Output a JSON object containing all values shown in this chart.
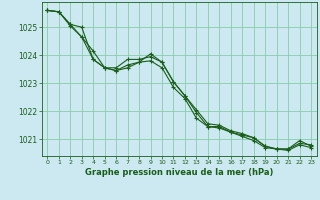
{
  "background_color": "#cce8f0",
  "grid_color": "#88ccaa",
  "line_color": "#1a5e1a",
  "xlabel": "Graphe pression niveau de la mer (hPa)",
  "xlim": [
    -0.5,
    23.5
  ],
  "ylim": [
    1020.4,
    1025.9
  ],
  "yticks": [
    1021,
    1022,
    1023,
    1024,
    1025
  ],
  "xticks": [
    0,
    1,
    2,
    3,
    4,
    5,
    6,
    7,
    8,
    9,
    10,
    11,
    12,
    13,
    14,
    15,
    16,
    17,
    18,
    19,
    20,
    21,
    22,
    23
  ],
  "series": [
    [
      1025.6,
      1025.55,
      1025.1,
      1025.0,
      1023.85,
      1023.55,
      1023.55,
      1023.85,
      1023.85,
      1023.95,
      1023.75,
      1023.05,
      1022.55,
      1021.95,
      1021.45,
      1021.45,
      1021.25,
      1021.15,
      1021.05,
      1020.75,
      1020.65,
      1020.65,
      1020.85,
      1020.8
    ],
    [
      1025.6,
      1025.55,
      1025.05,
      1024.65,
      1024.15,
      1023.55,
      1023.45,
      1023.65,
      1023.75,
      1024.05,
      1023.75,
      1023.05,
      1022.55,
      1022.05,
      1021.55,
      1021.5,
      1021.3,
      1021.2,
      1021.05,
      1020.75,
      1020.65,
      1020.65,
      1020.95,
      1020.75
    ],
    [
      1025.6,
      1025.55,
      1025.1,
      1024.65,
      1023.85,
      1023.55,
      1023.45,
      1023.55,
      1023.75,
      1023.8,
      1023.55,
      1022.85,
      1022.45,
      1021.75,
      1021.45,
      1021.4,
      1021.25,
      1021.1,
      1020.95,
      1020.7,
      1020.65,
      1020.6,
      1020.8,
      1020.7
    ]
  ]
}
